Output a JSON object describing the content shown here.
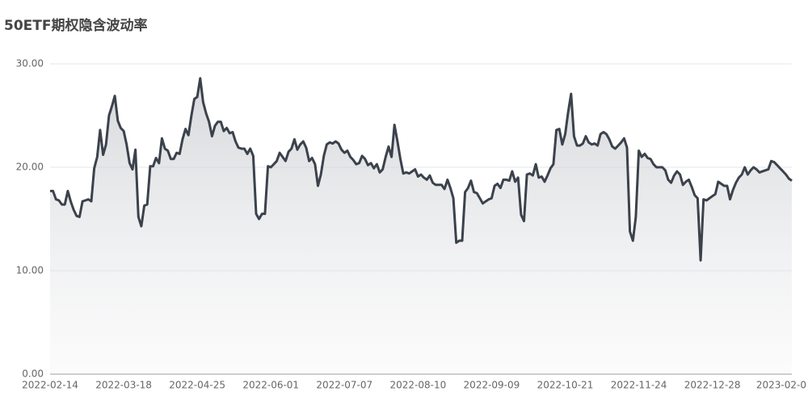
{
  "chart_data": {
    "type": "line",
    "title": "50ETF期权隐含波动率",
    "categories": [
      "2022-02-14",
      null,
      null,
      null,
      null,
      null,
      null,
      null,
      null,
      null,
      null,
      null,
      null,
      null,
      null,
      null,
      null,
      null,
      null,
      null,
      null,
      null,
      null,
      null,
      null,
      "2022-03-18",
      null,
      null,
      null,
      null,
      null,
      null,
      null,
      null,
      null,
      null,
      null,
      null,
      null,
      null,
      null,
      null,
      null,
      null,
      null,
      null,
      null,
      null,
      null,
      null,
      "2022-04-25",
      null,
      null,
      null,
      null,
      null,
      null,
      null,
      null,
      null,
      null,
      null,
      null,
      null,
      null,
      null,
      null,
      null,
      null,
      null,
      null,
      null,
      null,
      null,
      null,
      "2022-06-01",
      null,
      null,
      null,
      null,
      null,
      null,
      null,
      null,
      null,
      null,
      null,
      null,
      null,
      null,
      null,
      null,
      null,
      null,
      null,
      null,
      null,
      null,
      null,
      null,
      "2022-07-07",
      null,
      null,
      null,
      null,
      null,
      null,
      null,
      null,
      null,
      null,
      null,
      null,
      null,
      null,
      null,
      null,
      null,
      null,
      null,
      null,
      null,
      null,
      null,
      null,
      "2022-08-10",
      null,
      null,
      null,
      null,
      null,
      null,
      null,
      null,
      null,
      null,
      null,
      null,
      null,
      null,
      null,
      null,
      null,
      null,
      null,
      null,
      null,
      null,
      null,
      null,
      "2022-09-09",
      null,
      null,
      null,
      null,
      null,
      null,
      null,
      null,
      null,
      null,
      null,
      null,
      null,
      null,
      null,
      null,
      null,
      null,
      null,
      null,
      null,
      null,
      null,
      null,
      "2022-10-21",
      null,
      null,
      null,
      null,
      null,
      null,
      null,
      null,
      null,
      null,
      null,
      null,
      null,
      null,
      null,
      null,
      null,
      null,
      null,
      null,
      null,
      null,
      null,
      null,
      "2022-11-24",
      null,
      null,
      null,
      null,
      null,
      null,
      null,
      null,
      null,
      null,
      null,
      null,
      null,
      null,
      null,
      null,
      null,
      null,
      null,
      null,
      null,
      null,
      null,
      null,
      "2022-12-28",
      null,
      null,
      null,
      null,
      null,
      null,
      null,
      null,
      null,
      null,
      null,
      null,
      null,
      null,
      null,
      null,
      null,
      null,
      null,
      null,
      null,
      null,
      null,
      null,
      "2023-02-0",
      null,
      null
    ],
    "values": [
      17.7,
      17.7,
      16.9,
      16.8,
      16.4,
      16.4,
      17.7,
      16.7,
      15.9,
      15.3,
      15.2,
      16.7,
      16.8,
      16.9,
      16.7,
      19.9,
      21.0,
      23.6,
      21.2,
      22.2,
      25.0,
      25.9,
      26.9,
      24.5,
      23.8,
      23.5,
      22.2,
      20.4,
      19.8,
      21.7,
      15.2,
      14.3,
      16.3,
      16.4,
      20.1,
      20.1,
      20.9,
      20.4,
      22.8,
      21.8,
      21.6,
      20.8,
      20.8,
      21.4,
      21.3,
      22.7,
      23.7,
      23.1,
      25.0,
      26.6,
      26.8,
      28.6,
      26.3,
      25.2,
      24.4,
      23.0,
      24.0,
      24.4,
      24.4,
      23.5,
      23.8,
      23.3,
      23.4,
      22.5,
      21.9,
      21.8,
      21.8,
      21.3,
      21.8,
      21.1,
      15.5,
      15.0,
      15.5,
      15.5,
      20.1,
      20.0,
      20.3,
      20.6,
      21.4,
      21.0,
      20.6,
      21.5,
      21.8,
      22.7,
      21.7,
      22.2,
      22.5,
      21.9,
      20.6,
      20.9,
      20.3,
      18.2,
      19.3,
      21.1,
      22.2,
      22.4,
      22.3,
      22.5,
      22.3,
      21.7,
      21.4,
      21.6,
      21.0,
      20.7,
      20.3,
      20.4,
      21.1,
      20.8,
      20.2,
      20.4,
      19.9,
      20.3,
      19.5,
      19.8,
      21.0,
      22.0,
      21.0,
      24.1,
      22.5,
      20.8,
      19.4,
      19.5,
      19.4,
      19.6,
      19.8,
      19.1,
      19.3,
      19.0,
      18.8,
      19.2,
      18.5,
      18.3,
      18.3,
      18.3,
      17.9,
      18.8,
      18.0,
      17.0,
      12.7,
      12.9,
      12.9,
      17.6,
      18.0,
      18.7,
      17.6,
      17.5,
      17.0,
      16.5,
      16.7,
      16.9,
      17.0,
      18.2,
      18.4,
      18.0,
      18.8,
      18.8,
      18.7,
      19.6,
      18.6,
      19.0,
      15.4,
      14.8,
      19.3,
      19.4,
      19.2,
      20.3,
      19.0,
      19.1,
      18.6,
      19.2,
      19.9,
      20.3,
      23.6,
      23.7,
      22.2,
      23.2,
      25.3,
      27.1,
      23.0,
      22.1,
      22.1,
      22.3,
      23.0,
      22.4,
      22.2,
      22.3,
      22.1,
      23.2,
      23.4,
      23.2,
      22.7,
      22.0,
      21.8,
      22.1,
      22.4,
      22.8,
      21.9,
      13.8,
      12.9,
      15.2,
      21.6,
      21.0,
      21.3,
      20.9,
      20.8,
      20.3,
      20.0,
      20.0,
      20.0,
      19.7,
      18.8,
      18.5,
      19.2,
      19.6,
      19.3,
      18.3,
      18.6,
      18.8,
      18.1,
      17.3,
      17.0,
      11.0,
      16.9,
      16.8,
      17.0,
      17.2,
      17.4,
      18.6,
      18.4,
      18.2,
      18.2,
      16.9,
      17.8,
      18.5,
      19.0,
      19.3,
      20.0,
      19.3,
      19.7,
      20.0,
      19.8,
      19.5,
      19.6,
      19.7,
      19.8,
      20.6,
      20.5,
      20.2,
      19.9,
      19.6,
      19.3,
      18.9,
      18.7
    ],
    "color": "#3b424c",
    "ylim": [
      0,
      30
    ],
    "yticks": [
      {
        "value": 0,
        "label": "0.00"
      },
      {
        "value": 10,
        "label": "10.00"
      },
      {
        "value": 20,
        "label": "20.00"
      },
      {
        "value": 30,
        "label": "30.00"
      }
    ],
    "grid": true
  }
}
